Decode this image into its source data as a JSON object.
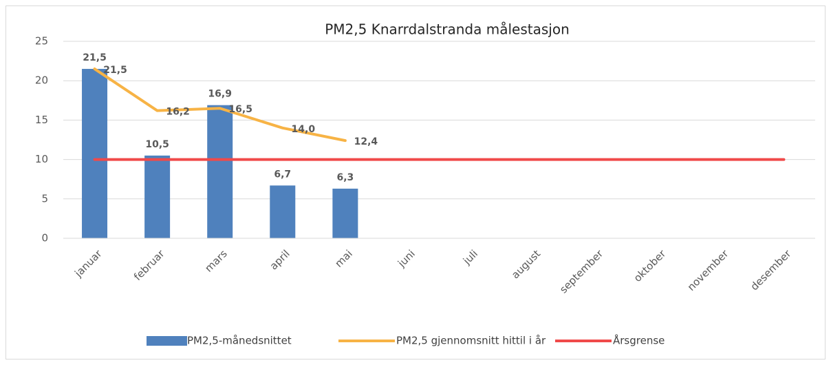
{
  "chart_data": {
    "type": "bar",
    "title": "PM2,5 Knarrdalstranda målestasjon",
    "categories": [
      "januar",
      "februar",
      "mars",
      "april",
      "mai",
      "juni",
      "juli",
      "august",
      "september",
      "oktober",
      "november",
      "desember"
    ],
    "series": [
      {
        "name": "PM2,5-månedsnittet",
        "type": "bar",
        "color": "#4f81bd",
        "label_color": "#244f63",
        "values": [
          21.5,
          10.5,
          16.9,
          6.7,
          6.3,
          null,
          null,
          null,
          null,
          null,
          null,
          null
        ],
        "value_labels": [
          "21,5",
          "10,5",
          "16,9",
          "6,7",
          "6,3",
          null,
          null,
          null,
          null,
          null,
          null,
          null
        ]
      },
      {
        "name": "PM2,5 gjennomsnitt hittil i år",
        "type": "line",
        "color": "#f7b345",
        "label_color": "#f0a020",
        "values": [
          21.5,
          16.2,
          16.5,
          14.0,
          12.4,
          null,
          null,
          null,
          null,
          null,
          null,
          null
        ],
        "value_labels": [
          "21,5",
          "16,2",
          "16,5",
          "14,0",
          "12,4",
          null,
          null,
          null,
          null,
          null,
          null,
          null
        ]
      },
      {
        "name": "Årsgrense",
        "type": "line",
        "color": "#f04a4a",
        "values": [
          10,
          10,
          10,
          10,
          10,
          10,
          10,
          10,
          10,
          10,
          10,
          10
        ]
      }
    ],
    "ylim": [
      0,
      25
    ],
    "yticks": [
      0,
      5,
      10,
      15,
      20,
      25
    ],
    "grid": true,
    "legend": "bottom"
  }
}
